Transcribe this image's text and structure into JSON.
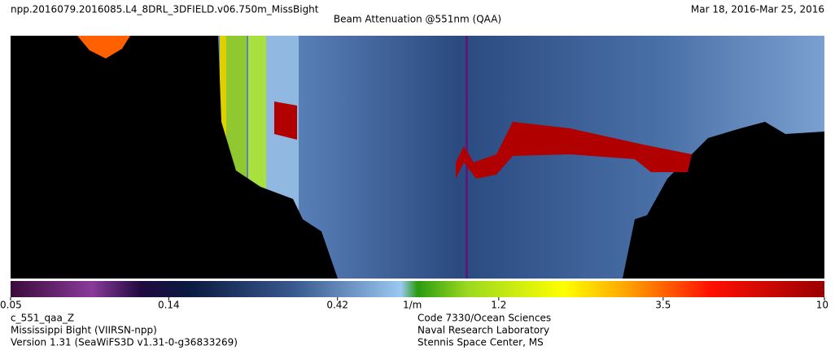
{
  "chart_data": {
    "type": "heatmap",
    "title": "npp.2016079.2016085.L4_8DRL_3DFIELD.v06.750m_MissBight",
    "date_range": "Mar 18, 2016-Mar 25, 2016",
    "subtitle": "Beam Attenuation @551nm (QAA)",
    "colorbar": {
      "lim": [
        0.05,
        10
      ],
      "ticks": [
        0.05,
        0.14,
        0.42,
        1.2,
        3.5,
        10
      ],
      "unit": "1/m",
      "scale": "log"
    },
    "footer_left": [
      "c_551_qaa_Z",
      "Mississippi Bight (VIIRSN-npp)",
      "Version 1.31 (SeaWiFS3D v1.31-0-g36833269)"
    ],
    "footer_right": [
      "Code 7330/Ocean Sciences",
      "Naval Research Laboratory",
      "Stennis Space Center, MS"
    ]
  }
}
